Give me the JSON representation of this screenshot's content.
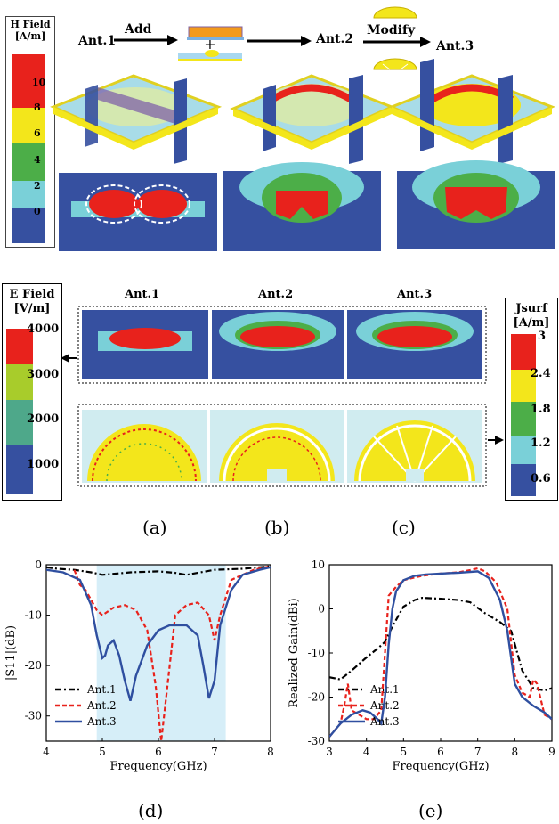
{
  "top": {
    "legend_title": [
      "H Field",
      "[A/m]"
    ],
    "legend_ticks": [
      "10",
      "8",
      "6",
      "4",
      "2",
      "0"
    ],
    "legend_colors": [
      "#e8221c",
      "#f3e61b",
      "#4cae48",
      "#7ad0d8",
      "#3650a0"
    ],
    "ant1": "Ant.1",
    "ant2": "Ant.2",
    "ant3": "Ant.3",
    "add": "Add",
    "modify": "Modify",
    "plus": "+"
  },
  "middle": {
    "e_legend_title": [
      "E Field",
      "[V/m]"
    ],
    "e_ticks": [
      "4000",
      "3000",
      "2000",
      "1000"
    ],
    "e_colors": [
      "#e8221c",
      "#a8cc2b",
      "#4ea88a",
      "#3650a0"
    ],
    "j_legend_title": [
      "Jsurf",
      "[A/m]"
    ],
    "j_ticks": [
      "3",
      "2.4",
      "1.8",
      "1.2",
      "0.6"
    ],
    "j_colors": [
      "#e8221c",
      "#f3e61b",
      "#4cae48",
      "#7ad0d8",
      "#3650a0"
    ],
    "col_ant1": "Ant.1",
    "col_ant2": "Ant.2",
    "col_ant3": "Ant.3"
  },
  "captions": {
    "a": "(a)",
    "b": "(b)",
    "c": "(c)",
    "d": "(d)",
    "e": "(e)"
  },
  "chart_data": [
    {
      "type": "line",
      "xlabel": "Frequency(GHz)",
      "ylabel": "|S11|(dB)",
      "xlim": [
        4,
        8
      ],
      "ylim": [
        -35,
        0
      ],
      "xticks": [
        4,
        5,
        6,
        7,
        8
      ],
      "yticks": [
        0,
        -10,
        -20,
        -30
      ],
      "shaded_band": [
        4.9,
        7.2
      ],
      "series": [
        {
          "name": "Ant.1",
          "style": "dashdot",
          "color": "#000000",
          "x": [
            4.0,
            4.2,
            4.5,
            4.8,
            5.0,
            5.5,
            6.0,
            6.3,
            6.5,
            7.0,
            7.5,
            7.8,
            8.0
          ],
          "y": [
            -0.5,
            -0.8,
            -1.0,
            -1.5,
            -2.0,
            -1.5,
            -1.3,
            -1.6,
            -2.0,
            -1.0,
            -0.8,
            -0.5,
            -0.3
          ]
        },
        {
          "name": "Ant.2",
          "style": "dashed",
          "color": "#e8221c",
          "x": [
            4.5,
            4.6,
            4.7,
            4.8,
            4.9,
            5.0,
            5.2,
            5.4,
            5.6,
            5.8,
            5.95,
            6.05,
            6.15,
            6.3,
            6.5,
            6.7,
            6.9,
            7.0,
            7.1,
            7.3,
            7.5,
            7.7,
            7.9,
            8.0
          ],
          "y": [
            -1,
            -4,
            -5,
            -7,
            -9,
            -10,
            -8.5,
            -8,
            -9,
            -13,
            -24,
            -35,
            -25,
            -10,
            -8,
            -7.5,
            -10,
            -15,
            -10,
            -3,
            -2,
            -1,
            -0.5,
            -0.3
          ]
        },
        {
          "name": "Ant.3",
          "style": "solid",
          "color": "#2f4fa0",
          "x": [
            4.0,
            4.3,
            4.6,
            4.8,
            4.9,
            5.0,
            5.05,
            5.1,
            5.2,
            5.3,
            5.4,
            5.5,
            5.6,
            5.8,
            6.0,
            6.2,
            6.5,
            6.7,
            6.8,
            6.9,
            7.0,
            7.1,
            7.3,
            7.5,
            7.8,
            8.0
          ],
          "y": [
            -1,
            -1.5,
            -3,
            -8,
            -14,
            -18.5,
            -18,
            -16,
            -15,
            -18,
            -23,
            -27,
            -22,
            -16,
            -13,
            -12,
            -12,
            -14,
            -20,
            -26.5,
            -23,
            -12,
            -5,
            -2,
            -1,
            -0.5
          ]
        }
      ]
    },
    {
      "type": "line",
      "xlabel": "Frequency(GHz)",
      "ylabel": "Realized Gain(dBi)",
      "xlim": [
        3,
        9
      ],
      "ylim": [
        -30,
        10
      ],
      "xticks": [
        3,
        4,
        5,
        6,
        7,
        8,
        9
      ],
      "yticks": [
        10,
        0,
        -10,
        -20,
        -30
      ],
      "series": [
        {
          "name": "Ant.1",
          "style": "dashdot",
          "color": "#000000",
          "x": [
            3.0,
            3.3,
            3.6,
            4.0,
            4.3,
            4.5,
            4.7,
            5.0,
            5.3,
            5.5,
            6.0,
            6.5,
            6.8,
            7.2,
            7.6,
            7.9,
            8.2,
            8.5,
            8.8,
            9.0
          ],
          "y": [
            -15.5,
            -16,
            -14,
            -11,
            -9,
            -7.5,
            -4,
            0.5,
            2,
            2.5,
            2.3,
            2.0,
            1.5,
            -1,
            -3,
            -5,
            -14,
            -18,
            -18.5,
            -18
          ]
        },
        {
          "name": "Ant.2",
          "style": "dashed",
          "color": "#e8221c",
          "x": [
            3.0,
            3.3,
            3.4,
            3.5,
            3.6,
            3.8,
            4.0,
            4.2,
            4.4,
            4.5,
            4.6,
            4.7,
            4.8,
            5.0,
            5.5,
            6.0,
            6.5,
            6.8,
            7.0,
            7.2,
            7.5,
            7.8,
            8.0,
            8.2,
            8.4,
            8.5,
            8.6,
            8.8,
            9.0
          ],
          "y": [
            -29,
            -26,
            -22,
            -17,
            -23,
            -24,
            -25,
            -25,
            -23,
            -10,
            3,
            4,
            5,
            6.5,
            7.5,
            8.0,
            8.3,
            8.8,
            9.2,
            8.5,
            6,
            0,
            -15,
            -19,
            -20,
            -16,
            -17,
            -24,
            -25
          ]
        },
        {
          "name": "Ant.3",
          "style": "solid",
          "color": "#2f4fa0",
          "x": [
            3.0,
            3.3,
            3.6,
            3.9,
            4.1,
            4.3,
            4.4,
            4.5,
            4.6,
            4.7,
            4.8,
            5.0,
            5.3,
            5.6,
            6.0,
            6.5,
            7.0,
            7.3,
            7.6,
            7.8,
            8.0,
            8.2,
            8.5,
            8.8,
            9.0
          ],
          "y": [
            -29,
            -26,
            -24,
            -23,
            -23.5,
            -25,
            -26,
            -20,
            -8,
            0,
            4,
            6.5,
            7.5,
            7.8,
            8.0,
            8.2,
            8.5,
            7,
            2,
            -5,
            -17,
            -20,
            -22,
            -23.5,
            -25
          ]
        }
      ]
    }
  ]
}
